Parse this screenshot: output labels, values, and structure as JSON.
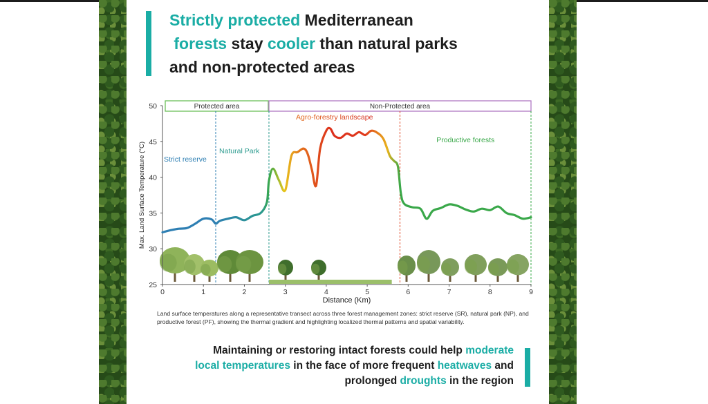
{
  "title": {
    "part1": "Strictly protected",
    "part2": " Mediterranean",
    "part3": "forests",
    "part4": " stay ",
    "part5": "cooler",
    "part6": " than natural parks",
    "line3": "and non-protected areas"
  },
  "colors": {
    "teal": "#1aada5",
    "strict": "#2e7fb3",
    "natural": "#2a9a8e",
    "productive": "#3aa84a",
    "agro_hot": "#e0401c",
    "protected_border": "#6cbf5a",
    "nonprotected_border": "#b07ac2"
  },
  "chart_data": {
    "type": "line",
    "xlabel": "Distance (Km)",
    "ylabel": "Max. Land Surface Temperature (°C)",
    "xlim": [
      0,
      9
    ],
    "ylim": [
      25,
      50
    ],
    "x_ticks": [
      0,
      1,
      2,
      3,
      4,
      5,
      6,
      7,
      8,
      9
    ],
    "y_ticks": [
      25,
      30,
      35,
      40,
      45,
      50
    ],
    "regions": [
      {
        "label": "Protected area",
        "x_start": 0,
        "x_end": 2.6
      },
      {
        "label": "Non-Protected area",
        "x_start": 2.6,
        "x_end": 9
      }
    ],
    "zones": [
      {
        "label": "Strict reserve",
        "x_start": 0,
        "x_end": 1.3
      },
      {
        "label": "Natural Park",
        "x_start": 1.3,
        "x_end": 2.6
      },
      {
        "label": "Agro-forestry landscape",
        "x_start": 2.6,
        "x_end": 5.8
      },
      {
        "label": "Productive forests",
        "x_start": 5.8,
        "x_end": 9
      }
    ],
    "x": [
      0,
      0.2,
      0.4,
      0.6,
      0.8,
      1.0,
      1.2,
      1.3,
      1.4,
      1.6,
      1.8,
      2.0,
      2.2,
      2.4,
      2.55,
      2.6,
      2.7,
      2.85,
      3.0,
      3.15,
      3.3,
      3.45,
      3.55,
      3.65,
      3.75,
      3.85,
      4.0,
      4.1,
      4.2,
      4.35,
      4.5,
      4.65,
      4.8,
      4.95,
      5.1,
      5.25,
      5.4,
      5.55,
      5.65,
      5.75,
      5.82,
      5.9,
      6.1,
      6.3,
      6.45,
      6.6,
      6.8,
      7.0,
      7.2,
      7.4,
      7.6,
      7.8,
      8.0,
      8.2,
      8.4,
      8.6,
      8.8,
      9.0
    ],
    "y": [
      32.3,
      32.6,
      32.8,
      32.9,
      33.5,
      34.2,
      34.1,
      33.5,
      33.9,
      34.2,
      34.4,
      34.0,
      34.6,
      35.0,
      36.5,
      39.5,
      41.2,
      39.5,
      38.2,
      43.0,
      43.5,
      44.0,
      43.2,
      41.0,
      38.8,
      44.0,
      46.5,
      46.8,
      45.8,
      45.5,
      46.1,
      45.8,
      46.3,
      45.9,
      46.5,
      46.2,
      45.3,
      43.0,
      42.3,
      41.5,
      37.8,
      36.3,
      35.8,
      35.6,
      34.2,
      35.3,
      35.7,
      36.2,
      36.0,
      35.5,
      35.2,
      35.6,
      35.4,
      35.9,
      35.0,
      34.7,
      34.2,
      34.4
    ]
  },
  "caption": "Land surface temperatures along a representative transect across three forest management zones: strict reserve (SR), natural park (NP), and productive forest (PF), showing the thermal gradient and highlighting localized thermal patterns and spatial variability.",
  "conclusion": {
    "part1": "Maintaining or restoring intact forests could help ",
    "part2": "moderate",
    "part3": "local temperatures",
    "part4": " in the face of more frequent ",
    "part5": "heatwaves",
    "part6": " and",
    "part7": "prolonged ",
    "part8": "droughts",
    "part9": " in the region"
  }
}
